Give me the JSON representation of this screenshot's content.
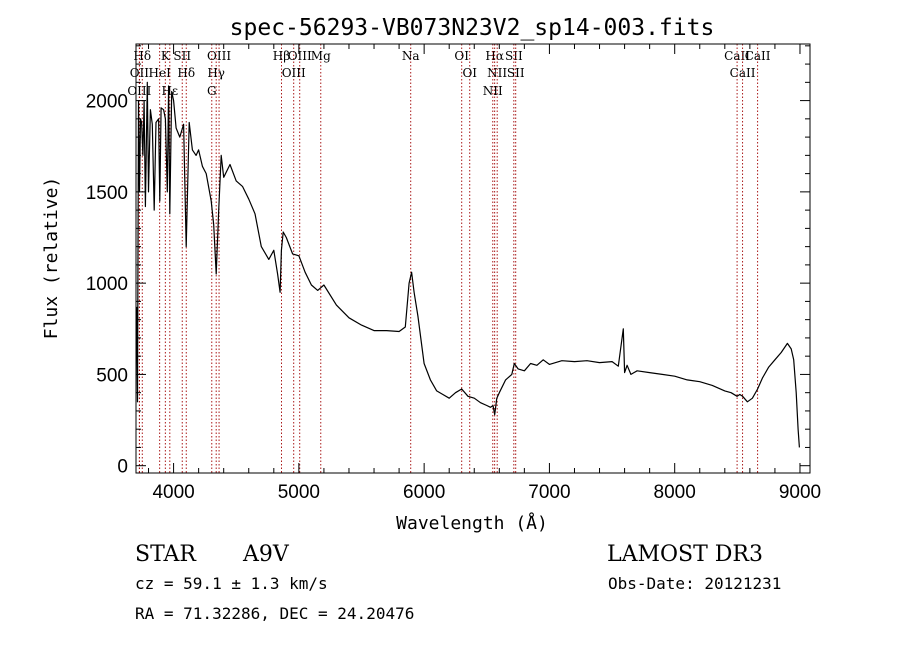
{
  "chart_data": {
    "type": "line",
    "title": "spec-56293-VB073N23V2_sp14-003.fits",
    "xlabel": "Wavelength (Å)",
    "ylabel": "Flux (relative)",
    "xlim": [
      3700,
      9080
    ],
    "ylim": [
      -40,
      2310
    ],
    "x_ticks": [
      4000,
      5000,
      6000,
      7000,
      8000,
      9000
    ],
    "y_ticks": [
      0,
      500,
      1000,
      1500,
      2000
    ],
    "x_minor_step": 200,
    "y_minor_step": 100,
    "grid": false,
    "series": [
      {
        "name": "flux",
        "x": [
          3705,
          3712,
          3720,
          3728,
          3736,
          3745,
          3755,
          3765,
          3775,
          3790,
          3800,
          3815,
          3830,
          3845,
          3860,
          3880,
          3890,
          3900,
          3920,
          3935,
          3950,
          3960,
          3970,
          3985,
          4000,
          4020,
          4050,
          4080,
          4101,
          4125,
          4150,
          4180,
          4200,
          4230,
          4260,
          4300,
          4320,
          4340,
          4360,
          4380,
          4400,
          4450,
          4500,
          4550,
          4600,
          4650,
          4700,
          4760,
          4800,
          4830,
          4850,
          4861,
          4875,
          4900,
          4950,
          5000,
          5050,
          5100,
          5150,
          5200,
          5300,
          5400,
          5500,
          5600,
          5700,
          5800,
          5850,
          5880,
          5900,
          5920,
          5950,
          6000,
          6050,
          6100,
          6150,
          6200,
          6250,
          6300,
          6350,
          6400,
          6450,
          6500,
          6530,
          6550,
          6563,
          6580,
          6600,
          6650,
          6700,
          6720,
          6750,
          6800,
          6850,
          6900,
          6950,
          7000,
          7100,
          7200,
          7300,
          7400,
          7500,
          7550,
          7590,
          7600,
          7620,
          7650,
          7700,
          7800,
          7900,
          8000,
          8100,
          8200,
          8300,
          8400,
          8450,
          8498,
          8520,
          8542,
          8580,
          8620,
          8662,
          8700,
          8750,
          8800,
          8850,
          8900,
          8930,
          8950,
          8970,
          8985,
          8995
        ],
        "values": [
          870,
          350,
          2000,
          1500,
          1900,
          1880,
          1700,
          2000,
          1420,
          2100,
          1500,
          1950,
          1870,
          1400,
          1880,
          1900,
          1450,
          1960,
          1950,
          1900,
          1500,
          2080,
          1380,
          2050,
          2000,
          1850,
          1800,
          1870,
          1200,
          1880,
          1730,
          1700,
          1730,
          1640,
          1600,
          1450,
          1320,
          1050,
          1400,
          1700,
          1580,
          1650,
          1560,
          1530,
          1460,
          1380,
          1200,
          1130,
          1180,
          1050,
          950,
          1180,
          1280,
          1250,
          1160,
          1150,
          1060,
          990,
          960,
          990,
          880,
          810,
          770,
          740,
          740,
          735,
          760,
          1000,
          1060,
          950,
          820,
          560,
          470,
          410,
          390,
          370,
          400,
          420,
          380,
          370,
          345,
          330,
          320,
          330,
          280,
          370,
          400,
          470,
          500,
          560,
          530,
          520,
          560,
          550,
          580,
          555,
          575,
          570,
          575,
          565,
          570,
          545,
          750,
          510,
          550,
          500,
          520,
          510,
          500,
          490,
          470,
          460,
          440,
          410,
          400,
          380,
          390,
          380,
          350,
          370,
          420,
          480,
          540,
          580,
          620,
          670,
          640,
          580,
          400,
          200,
          100
        ]
      }
    ],
    "line_markers": [
      {
        "label": "Hδ",
        "x": 3750
      },
      {
        "label": "OII",
        "x": 3727
      },
      {
        "label": "OIII",
        "x": 3727
      },
      {
        "label": "K",
        "x": 3934
      },
      {
        "label": "HeI",
        "x": 3889
      },
      {
        "label": "Hε",
        "x": 3970
      },
      {
        "label": "SII",
        "x": 4069
      },
      {
        "label": "Hδ",
        "x": 4101
      },
      {
        "label": "OIII",
        "x": 4363
      },
      {
        "label": "Hγ",
        "x": 4340
      },
      {
        "label": "G",
        "x": 4305
      },
      {
        "label": "Hβ",
        "x": 4861
      },
      {
        "label": "OIII",
        "x": 4959
      },
      {
        "label": "OIII",
        "x": 5007
      },
      {
        "label": "Mg",
        "x": 5175
      },
      {
        "label": "Na",
        "x": 5893
      },
      {
        "label": "OI",
        "x": 6300
      },
      {
        "label": "OI",
        "x": 6364
      },
      {
        "label": "Hα",
        "x": 6563
      },
      {
        "label": "NII",
        "x": 6583
      },
      {
        "label": "NII",
        "x": 6548
      },
      {
        "label": "SII",
        "x": 6716
      },
      {
        "label": "SII",
        "x": 6731
      },
      {
        "label": "CaII",
        "x": 8498
      },
      {
        "label": "CaII",
        "x": 8542
      },
      {
        "label": "CaII",
        "x": 8662
      }
    ]
  },
  "info": {
    "object_type": "STAR",
    "spectral_class": "A9V",
    "survey": "LAMOST DR3",
    "redshift": "cz = 59.1 ± 1.3 km/s",
    "obs_date": "Obs-Date: 20121231",
    "coords": "RA =  71.32286, DEC =  24.20476"
  },
  "colors": {
    "marker_line": "#a00000",
    "spectrum": "#000000"
  }
}
